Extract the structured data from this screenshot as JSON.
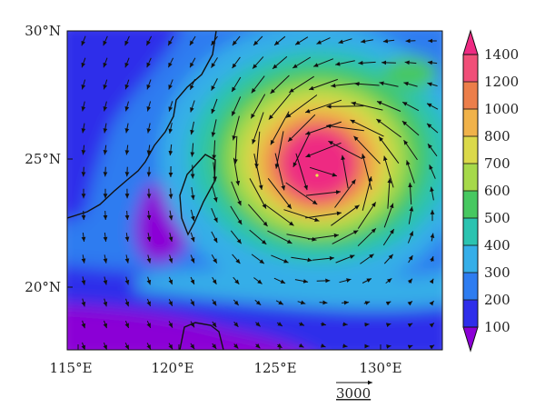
{
  "map": {
    "lat_ticks": [
      "30°N",
      "25°N",
      "20°N"
    ],
    "lon_ticks": [
      "115°E",
      "120°E",
      "125°E",
      "130°E"
    ],
    "lat_range": [
      17.5,
      30
    ],
    "lon_range": [
      114.5,
      133
    ],
    "grid": false,
    "reference_vector_label": "3000",
    "storm_center": {
      "lon": 127.2,
      "lat": 24.6
    }
  },
  "colorbar": {
    "levels": [
      "100",
      "200",
      "300",
      "400",
      "500",
      "600",
      "700",
      "800",
      "1000",
      "1200",
      "1400"
    ],
    "colors": [
      "#8b00d6",
      "#2e2eea",
      "#2e7cf0",
      "#35aee8",
      "#2bc3b0",
      "#47c860",
      "#a6d94a",
      "#dbd94a",
      "#f0b24a",
      "#ec7e4a",
      "#f04f78",
      "#ee2a82"
    ],
    "extend": "both"
  }
}
